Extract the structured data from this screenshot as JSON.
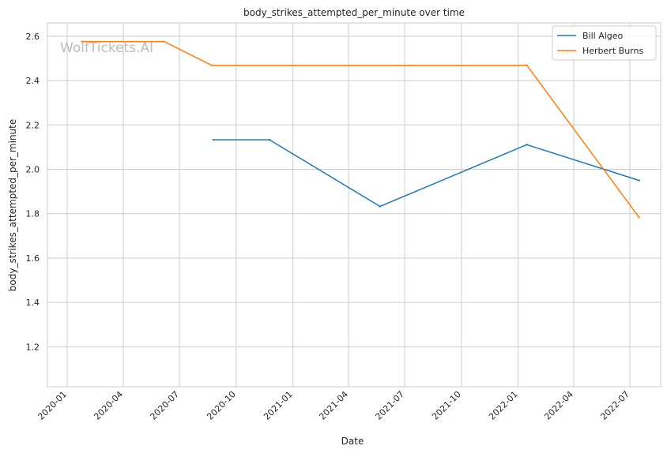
{
  "watermark": "WolfTickets.AI",
  "chart_data": {
    "type": "line",
    "title": "body_strikes_attempted_per_minute over time",
    "xlabel": "Date",
    "ylabel": "body_strikes_attempted_per_minute",
    "x_type": "date",
    "xlim": [
      "2019-11-30",
      "2022-08-20"
    ],
    "ylim": [
      1.02,
      2.66
    ],
    "x_ticks": [
      {
        "date": "2020-01-01",
        "label": "2020-01"
      },
      {
        "date": "2020-04-01",
        "label": "2020-04"
      },
      {
        "date": "2020-07-01",
        "label": "2020-07"
      },
      {
        "date": "2020-10-01",
        "label": "2020-10"
      },
      {
        "date": "2021-01-01",
        "label": "2021-01"
      },
      {
        "date": "2021-04-01",
        "label": "2021-04"
      },
      {
        "date": "2021-07-01",
        "label": "2021-07"
      },
      {
        "date": "2021-10-01",
        "label": "2021-10"
      },
      {
        "date": "2022-01-01",
        "label": "2022-01"
      },
      {
        "date": "2022-04-01",
        "label": "2022-04"
      },
      {
        "date": "2022-07-01",
        "label": "2022-07"
      }
    ],
    "y_ticks": [
      1.2,
      1.4,
      1.6,
      1.8,
      2.0,
      2.2,
      2.4,
      2.6
    ],
    "y_tick_labels": [
      "1.2",
      "1.4",
      "1.6",
      "1.8",
      "2.0",
      "2.2",
      "2.4",
      "2.6"
    ],
    "grid": true,
    "legend_position": "top-right",
    "series": [
      {
        "name": "Bill Algeo",
        "color": "#1f77b4",
        "points": [
          {
            "x": "2020-08-25",
            "y": 2.133
          },
          {
            "x": "2020-11-24",
            "y": 2.133
          },
          {
            "x": "2021-05-22",
            "y": 1.833
          },
          {
            "x": "2022-01-15",
            "y": 2.111
          },
          {
            "x": "2022-07-16",
            "y": 1.95
          }
        ]
      },
      {
        "name": "Herbert Burns",
        "color": "#ff7f0e",
        "points": [
          {
            "x": "2020-01-25",
            "y": 2.576
          },
          {
            "x": "2020-06-06",
            "y": 2.576
          },
          {
            "x": "2020-08-22",
            "y": 2.469
          },
          {
            "x": "2022-01-15",
            "y": 2.469
          },
          {
            "x": "2022-07-16",
            "y": 1.783
          }
        ]
      }
    ]
  }
}
